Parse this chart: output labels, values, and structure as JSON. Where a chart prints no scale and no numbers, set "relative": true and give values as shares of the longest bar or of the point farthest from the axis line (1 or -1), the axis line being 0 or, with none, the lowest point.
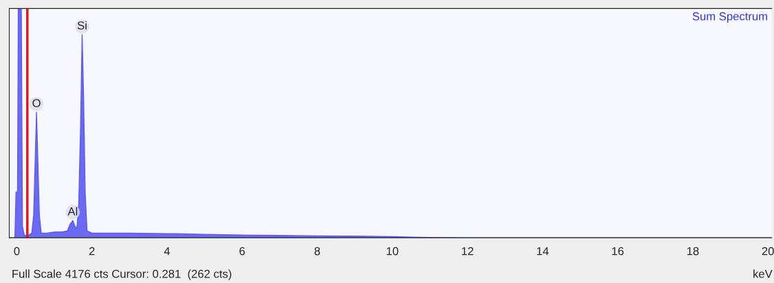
{
  "chart_data": {
    "type": "area",
    "title": "Sum Spectrum",
    "xlabel": "keV",
    "relative": true,
    "xlim": [
      -0.2,
      20.1
    ],
    "xticks": [
      0,
      2,
      4,
      6,
      8,
      10,
      12,
      14,
      16,
      18,
      20
    ],
    "x": [
      -0.2,
      -0.05,
      -0.02,
      0.02,
      0.04,
      0.12,
      0.15,
      0.2,
      0.3,
      0.4,
      0.45,
      0.5,
      0.525,
      0.55,
      0.6,
      0.65,
      0.8,
      1.0,
      1.2,
      1.35,
      1.42,
      1.49,
      1.55,
      1.6,
      1.65,
      1.7,
      1.74,
      1.78,
      1.82,
      1.87,
      2.0,
      3,
      4,
      5,
      6,
      7,
      8,
      9,
      10,
      10.5,
      11,
      12,
      20.1
    ],
    "series": [
      {
        "color": "#5a5af2",
        "values": [
          0,
          0,
          0.2,
          0.2,
          1,
          1,
          0.05,
          0.01,
          0.01,
          0.02,
          0.1,
          0.4,
          0.547,
          0.4,
          0.1,
          0.02,
          0.02,
          0.025,
          0.025,
          0.03,
          0.06,
          0.075,
          0.05,
          0.04,
          0.15,
          0.5,
          0.886,
          0.6,
          0.2,
          0.03,
          0.02,
          0.02,
          0.018,
          0.015,
          0.012,
          0.01,
          0.008,
          0.007,
          0.005,
          0.003,
          0.001,
          0,
          0
        ]
      }
    ],
    "ref_lines": [
      {
        "axis": "x",
        "value": 0.281,
        "label": null,
        "color": "#e8151b"
      }
    ],
    "annotations": [
      {
        "text": "Si",
        "x": 1.74,
        "y": 0.886
      },
      {
        "text": "O",
        "x": 0.525,
        "y": 0.547
      },
      {
        "text": "Al",
        "x": 1.49,
        "y": 0.075
      },
      "Full Scale 4176 cts Cursor: 0.281  (262 cts)"
    ],
    "grid": false,
    "legend": false
  }
}
